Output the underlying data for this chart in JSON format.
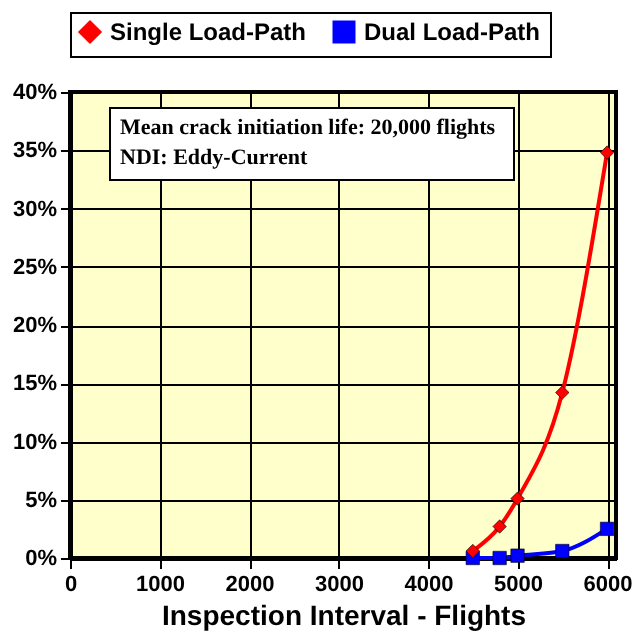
{
  "chart_data": {
    "type": "line",
    "xlabel": "Inspection Interval - Flights",
    "x": [
      4500,
      4800,
      5000,
      5500,
      6000
    ],
    "series": [
      {
        "name": "Single Load-Path",
        "color": "#ff0000",
        "marker": "diamond",
        "values": [
          0.6,
          2.7,
          5.1,
          14.2,
          34.8
        ]
      },
      {
        "name": "Dual Load-Path",
        "color": "#0000ff",
        "marker": "square",
        "values": [
          0,
          0,
          0.2,
          0.6,
          2.5
        ]
      }
    ],
    "xlim": [
      0,
      6100
    ],
    "xticks": [
      0,
      1000,
      2000,
      3000,
      4000,
      5000,
      6000
    ],
    "ylim": [
      0,
      40
    ],
    "yticks": [
      {
        "value": 0,
        "label": "0%"
      },
      {
        "value": 5,
        "label": "5%"
      },
      {
        "value": 10,
        "label": "10%"
      },
      {
        "value": 15,
        "label": "15%"
      },
      {
        "value": 20,
        "label": "20%"
      },
      {
        "value": 25,
        "label": "25%"
      },
      {
        "value": 30,
        "label": "30%"
      },
      {
        "value": 35,
        "label": "35%"
      },
      {
        "value": 40,
        "label": "40%"
      }
    ],
    "annotations": [
      "Mean crack initiation life: 20,000 flights",
      "NDI: Eddy-Current"
    ],
    "grid": true,
    "legend": "top",
    "line_style": "solid"
  }
}
